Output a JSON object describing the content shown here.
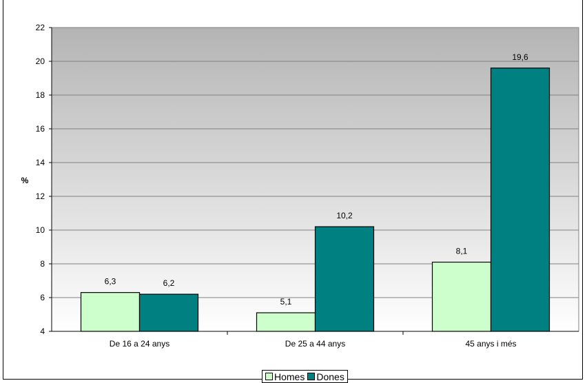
{
  "chart_data": {
    "type": "bar",
    "title": "",
    "ylabel": "%",
    "xlabel": "",
    "ylim": [
      4,
      22
    ],
    "yticks": [
      4,
      6,
      8,
      10,
      12,
      14,
      16,
      18,
      20,
      22
    ],
    "grid": true,
    "legend_position": "bottom",
    "categories": [
      "De 16 a 24 anys",
      "De 25 a 44 anys",
      "45 anys i més"
    ],
    "series": [
      {
        "name": "Homes",
        "color": "#ccffcc",
        "values": [
          6.3,
          5.1,
          8.1
        ],
        "labels": [
          "6,3",
          "5,1",
          "8,1"
        ]
      },
      {
        "name": "Dones",
        "color": "#008080",
        "values": [
          6.2,
          10.2,
          19.6
        ],
        "labels": [
          "6,2",
          "10,2",
          "19,6"
        ]
      }
    ]
  }
}
